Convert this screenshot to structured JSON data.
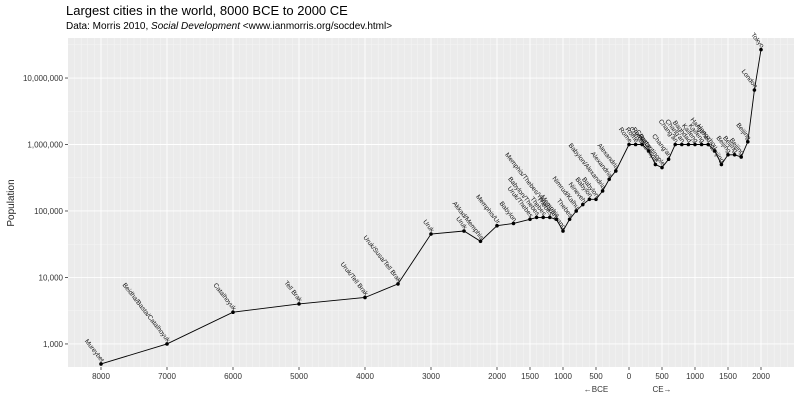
{
  "chart_data": {
    "type": "line",
    "title": "Largest cities in the world, 8000 BCE to 2000 CE",
    "subtitle_prefix": "Data: Morris 2010, ",
    "subtitle_source": "Social Development",
    "subtitle_suffix": " <www.ianmorris.org/socdev.html>",
    "ylabel": "Population",
    "y_scale": "log10",
    "ylim": [
      450,
      40000000
    ],
    "y_ticks": [
      1000,
      10000,
      100000,
      1000000,
      10000000
    ],
    "y_tick_labels": [
      "1,000",
      "10,000",
      "100,000",
      "1,000,000",
      "10,000,000"
    ],
    "xlim": [
      -8500,
      2500
    ],
    "x_ticks": [
      -8000,
      -7000,
      -6000,
      -5000,
      -4000,
      -3000,
      -2000,
      -1500,
      -1000,
      -500,
      0,
      500,
      1000,
      1500,
      2000
    ],
    "x_tick_labels": [
      "8000",
      "7000",
      "6000",
      "5000",
      "4000",
      "3000",
      "2000",
      "1500",
      "1000",
      "500",
      "0",
      "500",
      "1000",
      "1500",
      "2000"
    ],
    "era_labels": [
      "←BCE",
      "CE→"
    ],
    "grid": true,
    "points": [
      {
        "x": -8000,
        "y": 500,
        "city": "Mureybet"
      },
      {
        "x": -7000,
        "y": 1000,
        "city": "Beidha/Basta/Catalhoyuk"
      },
      {
        "x": -6000,
        "y": 3000,
        "city": "Catalhoyuk"
      },
      {
        "x": -5000,
        "y": 4000,
        "city": "Tell Brak"
      },
      {
        "x": -4000,
        "y": 5000,
        "city": "Uruk/Tell Brak"
      },
      {
        "x": -3500,
        "y": 8000,
        "city": "Uruk/Susa/Tell Brak"
      },
      {
        "x": -3000,
        "y": 45000,
        "city": "Uruk"
      },
      {
        "x": -2500,
        "y": 50000,
        "city": "Uruk"
      },
      {
        "x": -2250,
        "y": 35000,
        "city": "Akkad/Memphis"
      },
      {
        "x": -2000,
        "y": 60000,
        "city": "Memphis/Ur"
      },
      {
        "x": -1750,
        "y": 65000,
        "city": "Babylon"
      },
      {
        "x": -1500,
        "y": 75000,
        "city": "Uruk/Thebes"
      },
      {
        "x": -1400,
        "y": 80000,
        "city": "Babylon/Thebes"
      },
      {
        "x": -1300,
        "y": 80000,
        "city": "Thebes"
      },
      {
        "x": -1200,
        "y": 80000,
        "city": "Thebes"
      },
      {
        "x": -1100,
        "y": 75000,
        "city": "Memphis"
      },
      {
        "x": -1000,
        "y": 50000,
        "city": "Memphis/Thebes/Yanshi/Anyang"
      },
      {
        "x": -900,
        "y": 75000,
        "city": "Thebes"
      },
      {
        "x": -800,
        "y": 100000,
        "city": "Nimrud/Kalhu"
      },
      {
        "x": -700,
        "y": 125000,
        "city": "Nineveh"
      },
      {
        "x": -600,
        "y": 150000,
        "city": "Babylon"
      },
      {
        "x": -500,
        "y": 150000,
        "city": "Babylon"
      },
      {
        "x": -400,
        "y": 200000,
        "city": "Babylon/Alexandria"
      },
      {
        "x": -300,
        "y": 300000,
        "city": "Alexandria"
      },
      {
        "x": -200,
        "y": 400000,
        "city": "Alexandria"
      },
      {
        "x": 0,
        "y": 1000000,
        "city": "Rome"
      },
      {
        "x": 100,
        "y": 1000000,
        "city": "Rome"
      },
      {
        "x": 200,
        "y": 1000000,
        "city": "Rome"
      },
      {
        "x": 300,
        "y": 800000,
        "city": "Rome"
      },
      {
        "x": 400,
        "y": 500000,
        "city": "Constantinople"
      },
      {
        "x": 500,
        "y": 450000,
        "city": "Constantinople"
      },
      {
        "x": 600,
        "y": 600000,
        "city": "Chang'an"
      },
      {
        "x": 700,
        "y": 1000000,
        "city": "Chang'an"
      },
      {
        "x": 800,
        "y": 1000000,
        "city": "Chang'an"
      },
      {
        "x": 900,
        "y": 1000000,
        "city": "Baghdad"
      },
      {
        "x": 1000,
        "y": 1000000,
        "city": "Kaifeng"
      },
      {
        "x": 1100,
        "y": 1000000,
        "city": "Kaifeng"
      },
      {
        "x": 1200,
        "y": 1000000,
        "city": "Hangzhou"
      },
      {
        "x": 1300,
        "y": 800000,
        "city": "Hangzhou"
      },
      {
        "x": 1400,
        "y": 500000,
        "city": "Nanjing"
      },
      {
        "x": 1500,
        "y": 700000,
        "city": "Beijing"
      },
      {
        "x": 1600,
        "y": 700000,
        "city": "Beijing"
      },
      {
        "x": 1700,
        "y": 650000,
        "city": "Beijing"
      },
      {
        "x": 1800,
        "y": 1100000,
        "city": "Beijing"
      },
      {
        "x": 1900,
        "y": 6600000,
        "city": "London"
      },
      {
        "x": 2000,
        "y": 26700000,
        "city": "Tokyo"
      }
    ]
  }
}
